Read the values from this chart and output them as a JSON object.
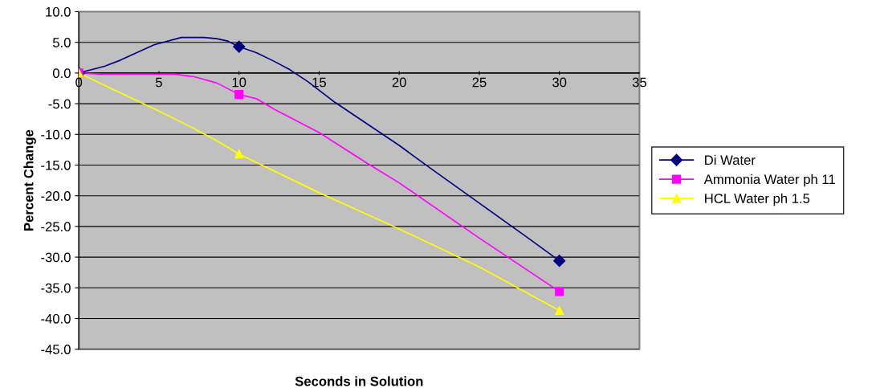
{
  "chart_data": {
    "type": "line",
    "xlabel": "Seconds in Solution",
    "ylabel": "Percent Change",
    "series": [
      {
        "name": "Di Water",
        "color": "#000080",
        "x": [
          0,
          1.6,
          2.6,
          4.7,
          6.4,
          7.8,
          8.6,
          9.3,
          10,
          11.1,
          12.2,
          13.2,
          14.3,
          16,
          18,
          20,
          22,
          25,
          28,
          30
        ],
        "values": [
          0.0,
          1.1,
          2.1,
          4.6,
          5.8,
          5.8,
          5.6,
          5.2,
          4.3,
          3.3,
          1.9,
          0.5,
          -1.4,
          -4.8,
          -8.3,
          -11.8,
          -15.6,
          -21.2,
          -26.8,
          -30.6
        ]
      },
      {
        "name": "Ammonia Water ph 11",
        "color": "#ff00ff",
        "x": [
          0,
          1.5,
          4.5,
          6.0,
          7.2,
          8.6,
          10,
          11.1,
          12.2,
          15,
          18,
          20,
          25,
          30
        ],
        "values": [
          0.0,
          -0.2,
          -0.2,
          -0.2,
          -0.6,
          -1.6,
          -3.5,
          -4.2,
          -5.9,
          -9.7,
          -14.7,
          -17.9,
          -26.9,
          -35.6
        ]
      },
      {
        "name": "HCL Water ph 1.5",
        "color": "#ffff00",
        "x": [
          0,
          2,
          5,
          7,
          8.6,
          10,
          15,
          20,
          25,
          30
        ],
        "values": [
          0.0,
          -2.5,
          -6.2,
          -8.8,
          -11.0,
          -13.2,
          -19.5,
          -25.4,
          -31.6,
          -38.7
        ]
      },
      {
        "type": "scatter",
        "color": "#000080",
        "marker": "diamond",
        "x": [
          0,
          10,
          30
        ],
        "values": [
          0.0,
          4.3,
          -30.6
        ]
      },
      {
        "type": "scatter",
        "color": "#ff00ff",
        "marker": "square",
        "x": [
          0,
          10,
          30
        ],
        "values": [
          0.0,
          -3.5,
          -35.6
        ]
      },
      {
        "type": "scatter",
        "color": "#ffff00",
        "marker": "triangle",
        "x": [
          0,
          10,
          30
        ],
        "values": [
          0.0,
          -13.2,
          -38.7
        ]
      }
    ],
    "xlim": [
      0,
      35
    ],
    "xticks": [
      0,
      5,
      10,
      15,
      20,
      25,
      30,
      35
    ],
    "ylim": [
      -45,
      10
    ],
    "yticks": [
      {
        "value": 10,
        "label": "10.0"
      },
      {
        "value": 5,
        "label": "5.0"
      },
      {
        "value": 0,
        "label": "0.0"
      },
      {
        "value": -5,
        "label": "-5.0"
      },
      {
        "value": -10,
        "label": "-10.0"
      },
      {
        "value": -15,
        "label": "-15.0"
      },
      {
        "value": -20,
        "label": "-20.0"
      },
      {
        "value": -25,
        "label": "-25.0"
      },
      {
        "value": -30,
        "label": "-30.0"
      },
      {
        "value": -35,
        "label": "-35.0"
      },
      {
        "value": -40,
        "label": "-40.0"
      },
      {
        "value": -45,
        "label": "-45.0"
      }
    ],
    "grid": "y",
    "legend": "right",
    "line_style": "solid"
  }
}
